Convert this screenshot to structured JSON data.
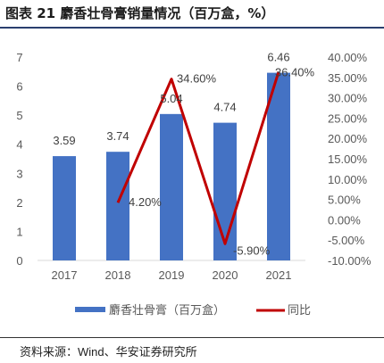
{
  "title": "图表 21 麝香壮骨膏销量情况（百万盒，%）",
  "source_label": "资料来源：",
  "source_names": "Wind、华安证券研究所",
  "chart_data": {
    "type": "bar",
    "title": "",
    "categories": [
      "2017",
      "2018",
      "2019",
      "2020",
      "2021"
    ],
    "series": [
      {
        "name": "麝香壮骨膏（百万盒）",
        "type": "bar",
        "axis": "left",
        "color": "#4472C4",
        "values": [
          3.59,
          3.74,
          5.04,
          4.74,
          6.46
        ],
        "labels": [
          "3.59",
          "3.74",
          "5.04",
          "4.74",
          "6.46"
        ]
      },
      {
        "name": "同比",
        "type": "line",
        "axis": "right",
        "color": "#C00000",
        "values": [
          null,
          4.2,
          34.6,
          -5.9,
          36.4
        ],
        "labels": [
          "",
          "4.20%",
          "34.60%",
          "-5.90%",
          "36.40%"
        ]
      }
    ],
    "y_left": {
      "min": 0,
      "max": 7,
      "ticks": [
        "0",
        "1",
        "2",
        "3",
        "4",
        "5",
        "6",
        "7"
      ]
    },
    "y_right": {
      "min": -10,
      "max": 40,
      "ticks": [
        "-10.00%",
        "-5.00%",
        "0.00%",
        "5.00%",
        "10.00%",
        "15.00%",
        "20.00%",
        "25.00%",
        "30.00%",
        "35.00%",
        "40.00%"
      ]
    },
    "grid": false,
    "legend_position": "bottom"
  }
}
